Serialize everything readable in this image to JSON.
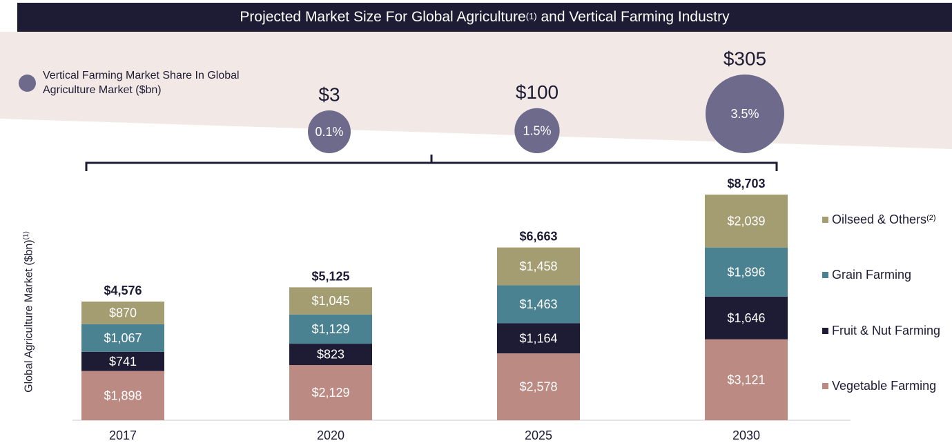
{
  "title": {
    "text": "Projected Market Size For Global Agriculture",
    "sup": "(1)",
    "text_after": " and Vertical Farming Industry"
  },
  "bubble_legend": {
    "label": "Vertical Farming Market Share In Global Agriculture Market ($bn)"
  },
  "y_axis": {
    "label": "Global Agriculture Market ($bn)",
    "sup": "(1)"
  },
  "legend": [
    {
      "label": "Oilseed & Others",
      "sup": "(2)"
    },
    {
      "label": "Grain Farming",
      "sup": ""
    },
    {
      "label": "Fruit & Nut Farming",
      "sup": ""
    },
    {
      "label": "Vegetable Farming",
      "sup": ""
    }
  ],
  "chart_data": {
    "type": "bar",
    "stacked": true,
    "categories": [
      "2017",
      "2020",
      "2025",
      "2030"
    ],
    "series": [
      {
        "name": "Vegetable Farming",
        "values": [
          1898,
          2129,
          2578,
          3121
        ],
        "labels": [
          "$1,898",
          "$2,129",
          "$2,578",
          "$3,121"
        ],
        "color": "#bb8a82"
      },
      {
        "name": "Fruit & Nut Farming",
        "values": [
          741,
          823,
          1164,
          1646
        ],
        "labels": [
          "$741",
          "$823",
          "$1,164",
          "$1,646"
        ],
        "color": "#1e1c35"
      },
      {
        "name": "Grain Farming",
        "values": [
          1067,
          1129,
          1463,
          1896
        ],
        "labels": [
          "$1,067",
          "$1,129",
          "$1,463",
          "$1,896"
        ],
        "color": "#4b8292"
      },
      {
        "name": "Oilseed & Others",
        "values": [
          870,
          1045,
          1458,
          2039
        ],
        "labels": [
          "$870",
          "$1,045",
          "$1,458",
          "$2,039"
        ],
        "color": "#a59d72"
      }
    ],
    "totals": [
      "$4,576",
      "$5,125",
      "$6,663",
      "$8,703"
    ],
    "ylim": [
      0,
      8703
    ],
    "grid": false,
    "legend_position": "right",
    "bubbles": {
      "categories": [
        "2020",
        "2025",
        "2030"
      ],
      "values": [
        3,
        100,
        305
      ],
      "value_labels": [
        "$3",
        "$100",
        "$305"
      ],
      "share_labels": [
        "0.1%",
        "1.5%",
        "3.5%"
      ],
      "share_values": [
        0.1,
        1.5,
        3.5
      ],
      "color": "#6d6a8c"
    }
  }
}
